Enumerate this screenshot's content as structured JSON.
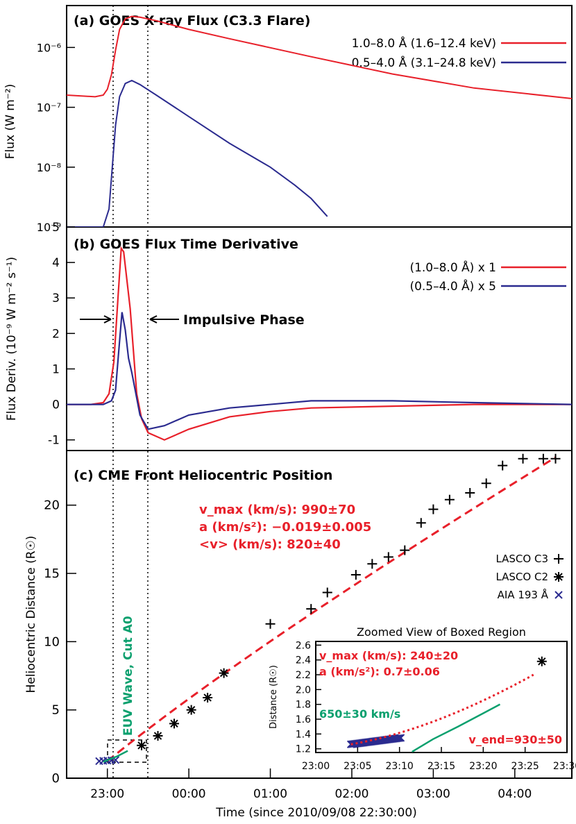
{
  "colors": {
    "red": "#e8202a",
    "blue": "#2b2b8f",
    "green": "#0aa06e",
    "black": "#000000"
  },
  "panel_a": {
    "title": "(a) GOES X-ray Flux (C3.3 Flare)",
    "ylabel": "Flux (W m⁻²)",
    "legend": [
      "1.0–8.0 Å (1.6–12.4 keV)",
      "0.5–4.0 Å (3.1–24.8 keV)"
    ],
    "ytick_labels": [
      "10⁻⁹",
      "10⁻⁸",
      "10⁻⁷",
      "10⁻⁶"
    ]
  },
  "panel_b": {
    "title": "(b) GOES Flux Time Derivative",
    "ylabel": "Flux Deriv. (10⁻⁹ W m⁻² s⁻¹)",
    "legend": [
      "(1.0–8.0 Å) x 1",
      "(0.5–4.0 Å) x 5"
    ],
    "annotation": "Impulsive Phase",
    "ytick_labels": [
      "-1",
      "0",
      "1",
      "2",
      "3",
      "4",
      "5"
    ]
  },
  "panel_c": {
    "title": "(c) CME Front Heliocentric Position",
    "ylabel": "Heliocentric Distance (R☉)",
    "fit_lines": [
      "v_max (km/s): 990±70",
      "a (km/s²): −0.019±0.005",
      "<v> (km/s): 820±40"
    ],
    "legend": [
      "LASCO C3",
      "LASCO C2",
      "AIA 193 Å"
    ],
    "euv_label": "EUV Wave, Cut A0",
    "ytick_labels": [
      "0",
      "5",
      "10",
      "15",
      "20"
    ],
    "xtick_labels": [
      "23:00",
      "00:00",
      "01:00",
      "02:00",
      "03:00",
      "04:00"
    ],
    "xlabel": "Time (since 2010/09/08 22:30:00)"
  },
  "inset": {
    "title": "Zoomed View of Boxed Region",
    "ylabel": "Distance (R☉)",
    "lines": [
      "v_max (km/s): 240±20",
      "a (km/s²): 0.7±0.06"
    ],
    "green_label": "650±30 km/s",
    "vend_label": "v_end=930±50",
    "xtick_labels": [
      "23:00",
      "23:05",
      "23:10",
      "23:15",
      "23:20",
      "23:25",
      "23:30"
    ],
    "ytick_labels": [
      "1.2",
      "1.4",
      "1.6",
      "1.8",
      "2.0",
      "2.2",
      "2.4",
      "2.6"
    ]
  },
  "chart_data": [
    {
      "type": "line",
      "title": "(a) GOES X-ray Flux (C3.3 Flare)",
      "ylabel": "Flux (W m⁻²)",
      "yscale": "log",
      "ylim": [
        1e-09,
        5e-06
      ],
      "xlim_hours_since_start": [
        0,
        6.2
      ],
      "series": [
        {
          "name": "1.0–8.0 Å (1.6–12.4 keV)",
          "color": "red",
          "x": [
            0,
            0.35,
            0.45,
            0.5,
            0.55,
            0.6,
            0.65,
            0.72,
            0.8,
            0.9,
            1.1,
            1.5,
            2.0,
            3.0,
            4.0,
            5.0,
            6.2
          ],
          "y": [
            1.6e-07,
            1.5e-07,
            1.6e-07,
            2e-07,
            3.5e-07,
            9e-07,
            2e-06,
            3e-06,
            3.3e-06,
            3.2e-06,
            2.8e-06,
            2e-06,
            1.4e-06,
            7e-07,
            3.6e-07,
            2.1e-07,
            1.4e-07
          ]
        },
        {
          "name": "0.5–4.0 Å (3.1–24.8 keV)",
          "color": "blue",
          "x": [
            0,
            0.3,
            0.45,
            0.52,
            0.56,
            0.6,
            0.65,
            0.72,
            0.8,
            0.9,
            1.1,
            1.5,
            2.0,
            2.5,
            2.8,
            3.0,
            3.2
          ],
          "y": [
            1e-09,
            1e-09,
            1e-09,
            2e-09,
            1e-08,
            5e-08,
            1.5e-07,
            2.5e-07,
            2.8e-07,
            2.4e-07,
            1.6e-07,
            7e-08,
            2.5e-08,
            1e-08,
            5e-09,
            3e-09,
            1.5e-09
          ]
        }
      ]
    },
    {
      "type": "line",
      "title": "(b) GOES Flux Time Derivative",
      "ylabel": "Flux Deriv. (10⁻⁹ W m⁻² s⁻¹)",
      "ylim": [
        -1.3,
        5
      ],
      "series": [
        {
          "name": "(1.0–8.0 Å) x 1",
          "color": "red",
          "x": [
            0,
            0.3,
            0.45,
            0.52,
            0.58,
            0.63,
            0.67,
            0.7,
            0.74,
            0.78,
            0.82,
            0.86,
            0.92,
            1.0,
            1.2,
            1.5,
            2.0,
            2.5,
            3.0,
            4.0,
            5.0,
            6.2
          ],
          "y": [
            0,
            0,
            0.05,
            0.3,
            1.2,
            3.0,
            4.4,
            4.3,
            3.5,
            2.7,
            1.5,
            0.3,
            -0.4,
            -0.8,
            -1.0,
            -0.7,
            -0.35,
            -0.2,
            -0.1,
            -0.05,
            0,
            0
          ]
        },
        {
          "name": "(0.5–4.0 Å) x 5",
          "color": "blue",
          "x": [
            0,
            0.3,
            0.45,
            0.55,
            0.6,
            0.64,
            0.68,
            0.72,
            0.76,
            0.8,
            0.85,
            0.9,
            1.0,
            1.2,
            1.5,
            2.0,
            3.0,
            4.0,
            5.0,
            6.2
          ],
          "y": [
            0,
            0,
            0,
            0.1,
            0.4,
            1.5,
            2.6,
            2.1,
            1.3,
            0.9,
            0.3,
            -0.3,
            -0.7,
            -0.6,
            -0.3,
            -0.1,
            0.1,
            0.1,
            0.05,
            0
          ]
        }
      ]
    },
    {
      "type": "scatter",
      "title": "(c) CME Front Heliocentric Position",
      "xlabel": "Time (since 2010/09/08 22:30:00)",
      "ylabel": "Heliocentric Distance (R☉)",
      "ylim": [
        0,
        24
      ],
      "series": [
        {
          "name": "LASCO C3",
          "marker": "plus",
          "color": "black",
          "x": [
            2.5,
            3.0,
            3.2,
            3.55,
            3.75,
            3.95,
            4.15,
            4.35,
            4.5,
            4.7,
            4.95,
            5.15,
            5.35,
            5.6,
            5.85,
            6.0
          ],
          "y": [
            11.3,
            12.4,
            13.6,
            14.9,
            15.7,
            16.2,
            16.7,
            18.7,
            19.7,
            20.4,
            20.9,
            21.6,
            22.9,
            23.4,
            23.4,
            23.4
          ]
        },
        {
          "name": "LASCO C2",
          "marker": "asterisk",
          "color": "black",
          "x": [
            0.92,
            1.12,
            1.32,
            1.53,
            1.73,
            1.93
          ],
          "y": [
            2.4,
            3.1,
            4.0,
            5.0,
            5.9,
            7.7
          ]
        },
        {
          "name": "AIA 193 Å",
          "marker": "x",
          "color": "blue",
          "x": [
            0.4,
            0.45,
            0.5,
            0.55,
            0.6
          ],
          "y": [
            1.25,
            1.27,
            1.29,
            1.31,
            1.33
          ]
        }
      ]
    }
  ]
}
